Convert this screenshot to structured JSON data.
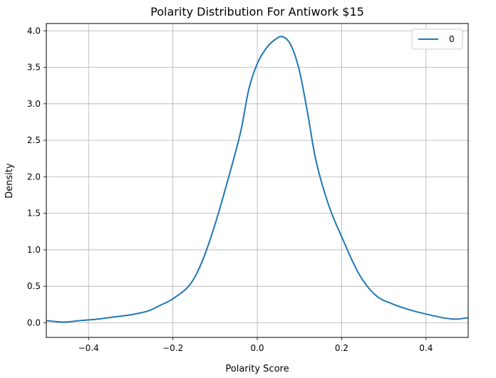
{
  "chart_data": {
    "type": "line",
    "title": "Polarity Distribution For Antiwork $15",
    "xlabel": "Polarity Score",
    "ylabel": "Density",
    "xlim": [
      -0.5,
      0.5
    ],
    "ylim": [
      -0.2,
      4.1
    ],
    "xticks": [
      -0.4,
      -0.2,
      0.0,
      0.2,
      0.4
    ],
    "xtick_labels": [
      "−0.4",
      "−0.2",
      "0.0",
      "0.2",
      "0.4"
    ],
    "yticks": [
      0.0,
      0.5,
      1.0,
      1.5,
      2.0,
      2.5,
      3.0,
      3.5,
      4.0
    ],
    "ytick_labels": [
      "0.0",
      "0.5",
      "1.0",
      "1.5",
      "2.0",
      "2.5",
      "3.0",
      "3.5",
      "4.0"
    ],
    "grid": true,
    "legend": {
      "position": "upper right",
      "entries": [
        "0"
      ]
    },
    "series": [
      {
        "name": "0",
        "color": "#1f77b4",
        "x": [
          -0.5,
          -0.46,
          -0.42,
          -0.38,
          -0.34,
          -0.3,
          -0.26,
          -0.23,
          -0.2,
          -0.16,
          -0.13,
          -0.1,
          -0.07,
          -0.04,
          -0.02,
          0.0,
          0.02,
          0.04,
          0.06,
          0.08,
          0.1,
          0.12,
          0.14,
          0.17,
          0.2,
          0.24,
          0.28,
          0.32,
          0.36,
          0.4,
          0.44,
          0.47,
          0.5
        ],
        "y": [
          0.03,
          0.01,
          0.03,
          0.05,
          0.08,
          0.11,
          0.16,
          0.24,
          0.33,
          0.52,
          0.85,
          1.35,
          1.95,
          2.6,
          3.2,
          3.55,
          3.75,
          3.87,
          3.92,
          3.8,
          3.45,
          2.85,
          2.2,
          1.6,
          1.18,
          0.68,
          0.38,
          0.26,
          0.18,
          0.12,
          0.07,
          0.05,
          0.07
        ]
      }
    ]
  }
}
